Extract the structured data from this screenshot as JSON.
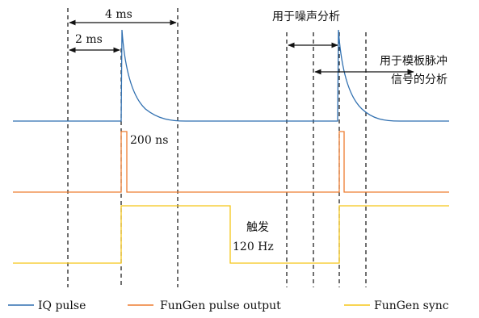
{
  "annotations": {
    "span_4ms": "4 ms",
    "span_2ms": "2 ms",
    "pulse_width": "200 ns",
    "noise_analysis": "用于噪声分析",
    "template_analysis_line1": "用于模板脉冲",
    "template_analysis_line2": "信号的分析",
    "trigger_line1": "触发",
    "trigger_line2": "120 Hz"
  },
  "legend": [
    {
      "label": "IQ pulse",
      "color": "#2f6fb0"
    },
    {
      "label": "FunGen pulse output",
      "color": "#ee7d31"
    },
    {
      "label": "FunGen sync",
      "color": "#f5c518"
    }
  ],
  "colors": {
    "iq": "#2f6fb0",
    "fungen_pulse": "#ee7d31",
    "fungen_sync": "#f5c518",
    "guide": "#111111"
  }
}
